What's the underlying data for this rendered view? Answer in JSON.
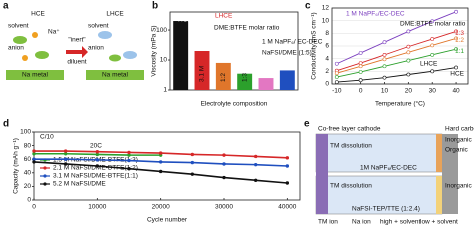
{
  "chart_data": [
    {
      "type": "bar",
      "label": "b",
      "xlabel": "Electrolyte composition",
      "ylabel": "Viscosity (mPa S)",
      "categories": [
        "5.2 M",
        "3.1 M",
        "1:2",
        "1:3",
        null,
        null
      ],
      "values": [
        200,
        20,
        8,
        3.5,
        2.5,
        4.5
      ],
      "colors": [
        "#111111",
        "#d62728",
        "#e0762b",
        "#2ca02c",
        "#e377c2",
        "#1f4fbf"
      ],
      "log_y": true,
      "ylim": [
        1,
        400
      ],
      "yticks": [
        1,
        10,
        100
      ],
      "annotations": [
        "HCE",
        "LHCE",
        "DME:BTFE molar ratio",
        "NaFSI/DME (1:5)",
        "1 M NaPF₆/ EC-DEC"
      ]
    },
    {
      "type": "line",
      "label": "c",
      "xlabel": "Temperature (°C)",
      "ylabel": "Conductivity (mS cm⁻¹)",
      "x": [
        -10,
        0,
        10,
        20,
        30,
        40
      ],
      "xlim": [
        -12,
        45
      ],
      "xticks": [
        -10,
        0,
        10,
        20,
        30,
        40
      ],
      "ylim": [
        0,
        12
      ],
      "yticks": [
        0,
        2,
        4,
        6,
        8,
        10,
        12
      ],
      "grid": true,
      "legend": "inline",
      "series": [
        {
          "name": "1 M NaPF₆/EC-DEC",
          "color": "#7b3fbf",
          "values": [
            3.2,
            4.9,
            6.6,
            8.3,
            9.9,
            11.4
          ]
        },
        {
          "name": "1:3",
          "color": "#d62728",
          "values": [
            2.1,
            3.3,
            4.6,
            5.9,
            7.1,
            8.3
          ]
        },
        {
          "name": "1:2",
          "color": "#e0762b",
          "values": [
            1.7,
            2.8,
            3.9,
            5.0,
            6.1,
            7.2
          ]
        },
        {
          "name": "1:1",
          "color": "#2ca02c",
          "values": [
            1.1,
            1.9,
            2.8,
            3.7,
            4.6,
            5.5
          ]
        },
        {
          "name": "HCE",
          "color": "#111111",
          "values": [
            0.3,
            0.6,
            1.0,
            1.5,
            2.0,
            2.6
          ]
        }
      ],
      "annotations": [
        "DME:BTFE molar ratio",
        "LHCE"
      ]
    },
    {
      "type": "line",
      "label": "d",
      "xlabel": "Cycle number",
      "ylabel": "Capacity (mAh g⁻¹)",
      "x": [
        0,
        5000,
        10000,
        15000,
        20000,
        25000,
        30000,
        35000,
        40000
      ],
      "xlim": [
        0,
        42000
      ],
      "xticks": [
        0,
        10000,
        20000,
        30000,
        40000
      ],
      "ylim": [
        0,
        100
      ],
      "yticks": [
        0,
        20,
        40,
        60,
        80,
        100
      ],
      "legend": "lower left",
      "markers": true,
      "series": [
        {
          "name": "1.5 M NaFSI/DME-BTFE(1:3)",
          "color": "#2ca02c",
          "values": [
            68,
            68,
            67,
            66,
            66,
            null,
            null,
            null,
            null
          ]
        },
        {
          "name": "2.1 M NaFSI/DME-BTFE(1:2)",
          "color": "#d62728",
          "values": [
            72,
            72,
            71,
            70,
            69,
            67,
            66,
            64,
            62
          ]
        },
        {
          "name": "3.1 M NaFSI/DME-BTFE(1:1)",
          "color": "#1f4fbf",
          "values": [
            60,
            60,
            59,
            58,
            56,
            55,
            53,
            52,
            50
          ]
        },
        {
          "name": "5.2 M NaFSI/DME",
          "color": "#111111",
          "values": [
            56,
            53,
            50,
            46,
            42,
            38,
            33,
            29,
            25
          ]
        }
      ],
      "annotations": [
        "C/10",
        "20C"
      ]
    }
  ],
  "diagrams": {
    "a": {
      "label": "a",
      "texts": [
        "HCE",
        "LHCE",
        "\"inert\"",
        "diluent",
        "Na metal",
        "Na metal",
        "solvent",
        "anion",
        "Na⁺",
        "solvent",
        "anion"
      ]
    },
    "e": {
      "label": "e",
      "texts": [
        "Co-free layer cathode",
        "Hard carbon",
        "TM dissolution",
        "Inorganic",
        "Organic",
        "1M NaPF₆/EC-DEC",
        "NaFSI-TEP/TTE (1:2.4)",
        "TM dissolution",
        "Inorganic",
        "TM ion",
        "Na ion",
        "high + solvent",
        "low + solvent"
      ]
    }
  }
}
